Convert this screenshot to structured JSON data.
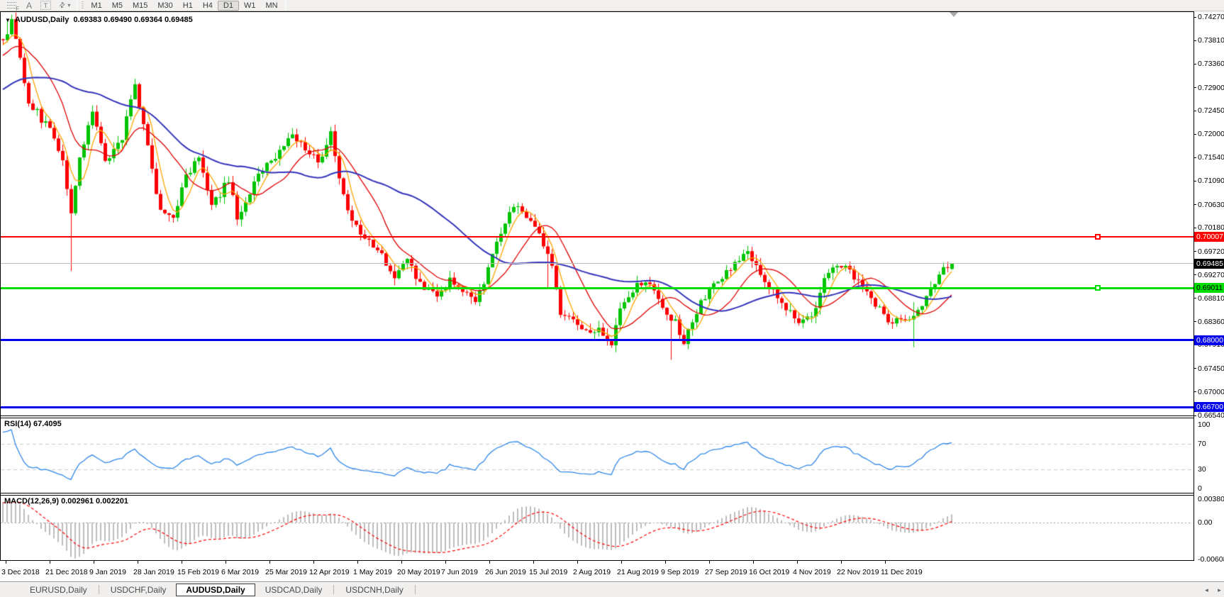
{
  "toolbar": {
    "draw_tools": [
      {
        "id": "fibonacci-tool",
        "label": "F"
      },
      {
        "id": "text-tool",
        "label": "A"
      },
      {
        "id": "text-label-tool",
        "label": "T"
      },
      {
        "id": "arrows-tool",
        "label": "⇄"
      }
    ],
    "timeframes": [
      "M1",
      "M5",
      "M15",
      "M30",
      "H1",
      "H4",
      "D1",
      "W1",
      "MN"
    ],
    "active_timeframe": "D1"
  },
  "ui_glyphs": {
    "dropdown": "▼",
    "caret": "▾",
    "tab_left": "◂",
    "tab_right": "▸"
  },
  "chart": {
    "title": "AUDUSD,Daily",
    "open": "0.69383",
    "high": "0.69490",
    "low": "0.69364",
    "close": "0.69485"
  },
  "price_axis": {
    "ticks": [
      "0.74270",
      "0.73810",
      "0.73360",
      "0.72900",
      "0.72450",
      "0.72000",
      "0.71540",
      "0.71090",
      "0.70630",
      "0.70180",
      "0.69720",
      "0.69270",
      "0.68810",
      "0.68360",
      "0.67910",
      "0.67450",
      "0.67000",
      "0.66540"
    ]
  },
  "date_axis": {
    "labels": [
      "3 Dec 2018",
      "21 Dec 2018",
      "9 Jan 2019",
      "28 Jan 2019",
      "15 Feb 2019",
      "6 Mar 2019",
      "25 Mar 2019",
      "12 Apr 2019",
      "1 May 2019",
      "20 May 2019",
      "7 Jun 2019",
      "26 Jun 2019",
      "15 Jul 2019",
      "2 Aug 2019",
      "21 Aug 2019",
      "9 Sep 2019",
      "27 Sep 2019",
      "16 Oct 2019",
      "4 Nov 2019",
      "22 Nov 2019",
      "11 Dec 2019"
    ]
  },
  "h_lines": [
    {
      "name": "resistance-line-red",
      "price": 0.70007,
      "label": "0.70007",
      "line_color": "#ff0000",
      "tag_bg": "#ff0000",
      "tag_fg": "#ffffff",
      "thickness": 2,
      "handle": true
    },
    {
      "name": "current-price-line",
      "price": 0.69485,
      "label": "0.69485",
      "line_color": "#b9b9b9",
      "tag_bg": "#000000",
      "tag_fg": "#ffffff",
      "thickness": 1,
      "handle": false
    },
    {
      "name": "support-line-green",
      "price": 0.69011,
      "label": "0.69011",
      "line_color": "#00dd00",
      "tag_bg": "#00dd00",
      "tag_fg": "#000000",
      "thickness": 3,
      "handle": true
    },
    {
      "name": "support-line-blue-1",
      "price": 0.68,
      "label": "0.68000",
      "line_color": "#0000ee",
      "tag_bg": "#0000ee",
      "tag_fg": "#ffffff",
      "thickness": 3,
      "handle": false
    },
    {
      "name": "support-line-blue-2",
      "price": 0.667,
      "label": "0.66700",
      "line_color": "#0000ee",
      "tag_bg": "#0000ee",
      "tag_fg": "#ffffff",
      "thickness": 3,
      "handle": false
    }
  ],
  "rsi_pane": {
    "name": "RSI(14)",
    "value": "67.4095",
    "scale": [
      "100",
      "70",
      "30",
      "0"
    ],
    "scale_values": [
      100,
      70,
      30,
      0
    ]
  },
  "macd_pane": {
    "name": "MACD(12,26,9)",
    "macd_value": "0.002961",
    "signal_value": "0.002201",
    "scale": [
      "0.003804",
      "0.00",
      "-0.006087"
    ],
    "scale_values": [
      0.003804,
      0,
      -0.006087
    ]
  },
  "tabs": {
    "items": [
      "EURUSD,Daily",
      "USDCHF,Daily",
      "AUDUSD,Daily",
      "USDCAD,Daily",
      "USDCNH,Daily"
    ],
    "active": "AUDUSD,Daily"
  },
  "chart_data": {
    "type": "candlestick",
    "symbol": "AUDUSD",
    "timeframe": "Daily",
    "title": "AUDUSD,Daily",
    "last_ohlc": {
      "open": 0.69383,
      "high": 0.6949,
      "low": 0.69364,
      "close": 0.69485
    },
    "y_axis": {
      "min": 0.6654,
      "max": 0.7427
    },
    "x_axis": {
      "labels": [
        "3 Dec 2018",
        "21 Dec 2018",
        "9 Jan 2019",
        "28 Jan 2019",
        "15 Feb 2019",
        "6 Mar 2019",
        "25 Mar 2019",
        "12 Apr 2019",
        "1 May 2019",
        "20 May 2019",
        "7 Jun 2019",
        "26 Jun 2019",
        "15 Jul 2019",
        "2 Aug 2019",
        "21 Aug 2019",
        "9 Sep 2019",
        "27 Sep 2019",
        "16 Oct 2019",
        "4 Nov 2019",
        "22 Nov 2019",
        "11 Dec 2019"
      ]
    },
    "candle_count": 224,
    "up_color": "#00c400",
    "down_color": "#ff0000",
    "close_anchors": [
      [
        0,
        0.738
      ],
      [
        2,
        0.7415
      ],
      [
        6,
        0.7267
      ],
      [
        11,
        0.7205
      ],
      [
        14,
        0.715
      ],
      [
        16,
        0.7048
      ],
      [
        18,
        0.7157
      ],
      [
        21,
        0.7247
      ],
      [
        24,
        0.715
      ],
      [
        28,
        0.7191
      ],
      [
        31,
        0.7301
      ],
      [
        33,
        0.7215
      ],
      [
        37,
        0.7047
      ],
      [
        40,
        0.704
      ],
      [
        43,
        0.712
      ],
      [
        46,
        0.715
      ],
      [
        49,
        0.7061
      ],
      [
        53,
        0.711
      ],
      [
        55,
        0.704
      ],
      [
        58,
        0.709
      ],
      [
        61,
        0.7135
      ],
      [
        64,
        0.7157
      ],
      [
        68,
        0.72
      ],
      [
        71,
        0.7175
      ],
      [
        74,
        0.7143
      ],
      [
        77,
        0.7205
      ],
      [
        79,
        0.712
      ],
      [
        82,
        0.703
      ],
      [
        85,
        0.6992
      ],
      [
        88,
        0.698
      ],
      [
        92,
        0.6923
      ],
      [
        95,
        0.695
      ],
      [
        99,
        0.6903
      ],
      [
        102,
        0.6882
      ],
      [
        105,
        0.692
      ],
      [
        108,
        0.69
      ],
      [
        111,
        0.687
      ],
      [
        113,
        0.6916
      ],
      [
        116,
        0.6985
      ],
      [
        118,
        0.703
      ],
      [
        120,
        0.7065
      ],
      [
        123,
        0.7045
      ],
      [
        126,
        0.701
      ],
      [
        129,
        0.695
      ],
      [
        131,
        0.6855
      ],
      [
        134,
        0.6833
      ],
      [
        138,
        0.6815
      ],
      [
        140,
        0.6826
      ],
      [
        143,
        0.679
      ],
      [
        145,
        0.6855
      ],
      [
        148,
        0.6896
      ],
      [
        151,
        0.692
      ],
      [
        154,
        0.6875
      ],
      [
        158,
        0.6835
      ],
      [
        160,
        0.68
      ],
      [
        163,
        0.6855
      ],
      [
        166,
        0.69
      ],
      [
        169,
        0.6923
      ],
      [
        173,
        0.696
      ],
      [
        175,
        0.697
      ],
      [
        178,
        0.693
      ],
      [
        180,
        0.691
      ],
      [
        183,
        0.6875
      ],
      [
        185,
        0.6855
      ],
      [
        188,
        0.6833
      ],
      [
        190,
        0.6845
      ],
      [
        193,
        0.692
      ],
      [
        195,
        0.694
      ],
      [
        198,
        0.6951
      ],
      [
        200,
        0.692
      ],
      [
        203,
        0.69
      ],
      [
        205,
        0.687
      ],
      [
        208,
        0.684
      ],
      [
        210,
        0.6838
      ],
      [
        213,
        0.6845
      ],
      [
        215,
        0.6855
      ],
      [
        218,
        0.6895
      ],
      [
        220,
        0.693
      ],
      [
        222,
        0.694
      ],
      [
        223,
        0.69485
      ]
    ],
    "special_wicks": [
      {
        "i": 1,
        "high": 0.0028
      },
      {
        "i": 16,
        "low": -0.01
      },
      {
        "i": 128,
        "low": -0.006
      },
      {
        "i": 157,
        "low": -0.007
      },
      {
        "i": 214,
        "low": -0.0045,
        "high": 0.0025
      }
    ],
    "prehistory": {
      "bars": 48,
      "from": 0.715,
      "to": 0.7375
    },
    "moving_averages": [
      {
        "type": "sma",
        "period": 5,
        "color": "#ffa500"
      },
      {
        "type": "sma",
        "period": 13,
        "color": "#e00000"
      },
      {
        "type": "sma",
        "period": 40,
        "color": "#3333bb"
      }
    ],
    "horizontal_lines": [
      {
        "price": 0.70007,
        "color": "#ff0000"
      },
      {
        "price": 0.69011,
        "color": "#00dd00"
      },
      {
        "price": 0.68,
        "color": "#0000ee"
      },
      {
        "price": 0.667,
        "color": "#0000ee"
      }
    ],
    "current_price": 0.69485,
    "indicators": [
      {
        "name": "RSI",
        "period": 14,
        "value": 67.4095,
        "levels": [
          70,
          30
        ],
        "range": [
          0,
          100
        ],
        "color": "#2e86e8"
      },
      {
        "name": "MACD",
        "fast": 12,
        "slow": 26,
        "signal": 9,
        "macd_value": 0.002961,
        "signal_value": 0.002201,
        "scale_max": 0.003804,
        "scale_min": -0.006087,
        "histogram_color": "#bdbdbd",
        "signal_color": "#ff0000",
        "signal_style": "dashed"
      }
    ]
  }
}
